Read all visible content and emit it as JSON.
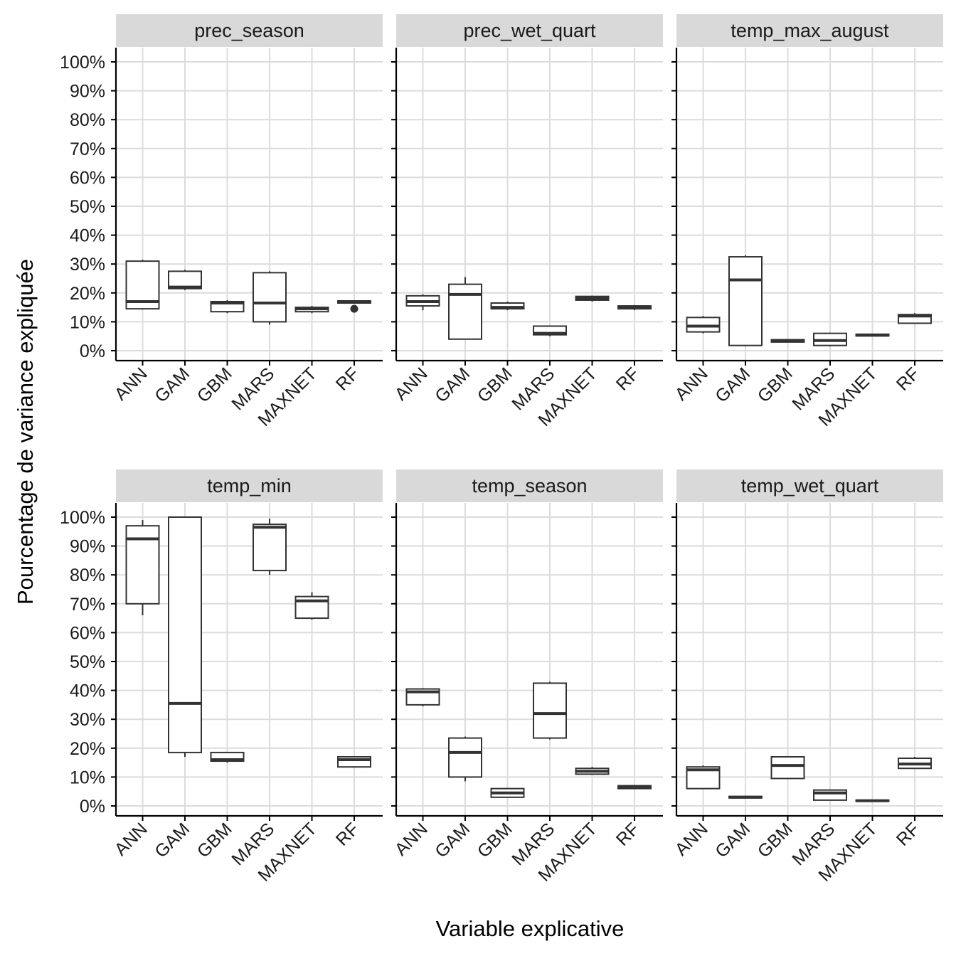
{
  "chart_data": {
    "type": "boxplot",
    "xlabel": "Variable explicative",
    "ylabel": "Pourcentage de variance expliquée",
    "ylim": [
      0,
      100
    ],
    "y_ticks": [
      "0%",
      "10%",
      "20%",
      "30%",
      "40%",
      "50%",
      "60%",
      "70%",
      "80%",
      "90%",
      "100%"
    ],
    "y_tick_values": [
      0,
      10,
      20,
      30,
      40,
      50,
      60,
      70,
      80,
      90,
      100
    ],
    "categories": [
      "ANN",
      "GAM",
      "GBM",
      "MARS",
      "MAXNET",
      "RF"
    ],
    "grid": true,
    "layout": "2 rows x 3 columns facets",
    "colors": {
      "strip": "#d9d9d9",
      "grid": "#dcdcdc",
      "box": "#333333",
      "axis": "#000000"
    },
    "facets": [
      {
        "name": "prec_season",
        "boxes": [
          {
            "category": "ANN",
            "min": 14.5,
            "q1": 14.5,
            "median": 17,
            "q3": 31,
            "max": 31.5,
            "outliers": []
          },
          {
            "category": "GAM",
            "min": 21,
            "q1": 21.5,
            "median": 22,
            "q3": 27.5,
            "max": 28,
            "outliers": []
          },
          {
            "category": "GBM",
            "min": 13,
            "q1": 13.5,
            "median": 16.5,
            "q3": 17,
            "max": 17.5,
            "outliers": []
          },
          {
            "category": "MARS",
            "min": 9,
            "q1": 10,
            "median": 16.5,
            "q3": 27,
            "max": 27.5,
            "outliers": []
          },
          {
            "category": "MAXNET",
            "min": 13,
            "q1": 13.5,
            "median": 14.5,
            "q3": 15,
            "max": 15.5,
            "outliers": []
          },
          {
            "category": "RF",
            "min": 16.5,
            "q1": 16.5,
            "median": 17,
            "q3": 17.2,
            "max": 17.5,
            "outliers": [
              14.5
            ]
          }
        ]
      },
      {
        "name": "prec_wet_quart",
        "boxes": [
          {
            "category": "ANN",
            "min": 14,
            "q1": 15.5,
            "median": 17,
            "q3": 19,
            "max": 19.5,
            "outliers": []
          },
          {
            "category": "GAM",
            "min": 4,
            "q1": 4,
            "median": 19.5,
            "q3": 23,
            "max": 25.5,
            "outliers": []
          },
          {
            "category": "GBM",
            "min": 14,
            "q1": 14.5,
            "median": 15,
            "q3": 16.5,
            "max": 17,
            "outliers": []
          },
          {
            "category": "MARS",
            "min": 5,
            "q1": 5.5,
            "median": 6,
            "q3": 8.5,
            "max": 8.5,
            "outliers": []
          },
          {
            "category": "MAXNET",
            "min": 17,
            "q1": 17.5,
            "median": 18.2,
            "q3": 18.8,
            "max": 19,
            "outliers": []
          },
          {
            "category": "RF",
            "min": 14,
            "q1": 14.5,
            "median": 15,
            "q3": 15.5,
            "max": 15.8,
            "outliers": []
          }
        ]
      },
      {
        "name": "temp_max_august",
        "boxes": [
          {
            "category": "ANN",
            "min": 6,
            "q1": 6.5,
            "median": 8.5,
            "q3": 11.5,
            "max": 12,
            "outliers": []
          },
          {
            "category": "GAM",
            "min": 1.5,
            "q1": 1.8,
            "median": 24.5,
            "q3": 32.5,
            "max": 33,
            "outliers": []
          },
          {
            "category": "GBM",
            "min": 3,
            "q1": 3,
            "median": 3.3,
            "q3": 3.8,
            "max": 4,
            "outliers": []
          },
          {
            "category": "MARS",
            "min": 1.5,
            "q1": 1.8,
            "median": 3.5,
            "q3": 6,
            "max": 6.2,
            "outliers": []
          },
          {
            "category": "MAXNET",
            "min": 5,
            "q1": 5.1,
            "median": 5.4,
            "q3": 5.7,
            "max": 5.8,
            "outliers": []
          },
          {
            "category": "RF",
            "min": 9.5,
            "q1": 9.5,
            "median": 12,
            "q3": 12.5,
            "max": 13,
            "outliers": []
          }
        ]
      },
      {
        "name": "temp_min",
        "boxes": [
          {
            "category": "ANN",
            "min": 66,
            "q1": 70,
            "median": 92.5,
            "q3": 97,
            "max": 99,
            "outliers": []
          },
          {
            "category": "GAM",
            "min": 17,
            "q1": 18.5,
            "median": 35.5,
            "q3": 100,
            "max": 100,
            "outliers": []
          },
          {
            "category": "GBM",
            "min": 15,
            "q1": 15.5,
            "median": 16,
            "q3": 18.5,
            "max": 18.5,
            "outliers": []
          },
          {
            "category": "MARS",
            "min": 80,
            "q1": 81.5,
            "median": 96.5,
            "q3": 97.5,
            "max": 99.5,
            "outliers": []
          },
          {
            "category": "MAXNET",
            "min": 64.5,
            "q1": 65,
            "median": 71,
            "q3": 72.5,
            "max": 74,
            "outliers": []
          },
          {
            "category": "RF",
            "min": 13.5,
            "q1": 13.5,
            "median": 16,
            "q3": 17,
            "max": 17.2,
            "outliers": []
          }
        ]
      },
      {
        "name": "temp_season",
        "boxes": [
          {
            "category": "ANN",
            "min": 34.5,
            "q1": 35,
            "median": 39.5,
            "q3": 40.5,
            "max": 40.8,
            "outliers": []
          },
          {
            "category": "GAM",
            "min": 8.5,
            "q1": 10,
            "median": 18.5,
            "q3": 23.5,
            "max": 24,
            "outliers": []
          },
          {
            "category": "GBM",
            "min": 3,
            "q1": 3,
            "median": 4.5,
            "q3": 6,
            "max": 6.2,
            "outliers": []
          },
          {
            "category": "MARS",
            "min": 23,
            "q1": 23.5,
            "median": 32,
            "q3": 42.5,
            "max": 43,
            "outliers": []
          },
          {
            "category": "MAXNET",
            "min": 11,
            "q1": 11,
            "median": 12,
            "q3": 13,
            "max": 13.5,
            "outliers": []
          },
          {
            "category": "RF",
            "min": 6,
            "q1": 6,
            "median": 6.5,
            "q3": 7,
            "max": 7.2,
            "outliers": []
          }
        ]
      },
      {
        "name": "temp_wet_quart",
        "boxes": [
          {
            "category": "ANN",
            "min": 6,
            "q1": 6,
            "median": 12.5,
            "q3": 13.5,
            "max": 14,
            "outliers": []
          },
          {
            "category": "GAM",
            "min": 2.7,
            "q1": 2.8,
            "median": 3,
            "q3": 3.3,
            "max": 3.5,
            "outliers": []
          },
          {
            "category": "GBM",
            "min": 9.5,
            "q1": 9.5,
            "median": 14,
            "q3": 17,
            "max": 17,
            "outliers": []
          },
          {
            "category": "MARS",
            "min": 2,
            "q1": 2,
            "median": 4.5,
            "q3": 5.5,
            "max": 5.5,
            "outliers": []
          },
          {
            "category": "MAXNET",
            "min": 1.5,
            "q1": 1.6,
            "median": 1.8,
            "q3": 2,
            "max": 2.1,
            "outliers": []
          },
          {
            "category": "RF",
            "min": 13,
            "q1": 13,
            "median": 14.5,
            "q3": 16.5,
            "max": 17,
            "outliers": []
          }
        ]
      }
    ]
  }
}
